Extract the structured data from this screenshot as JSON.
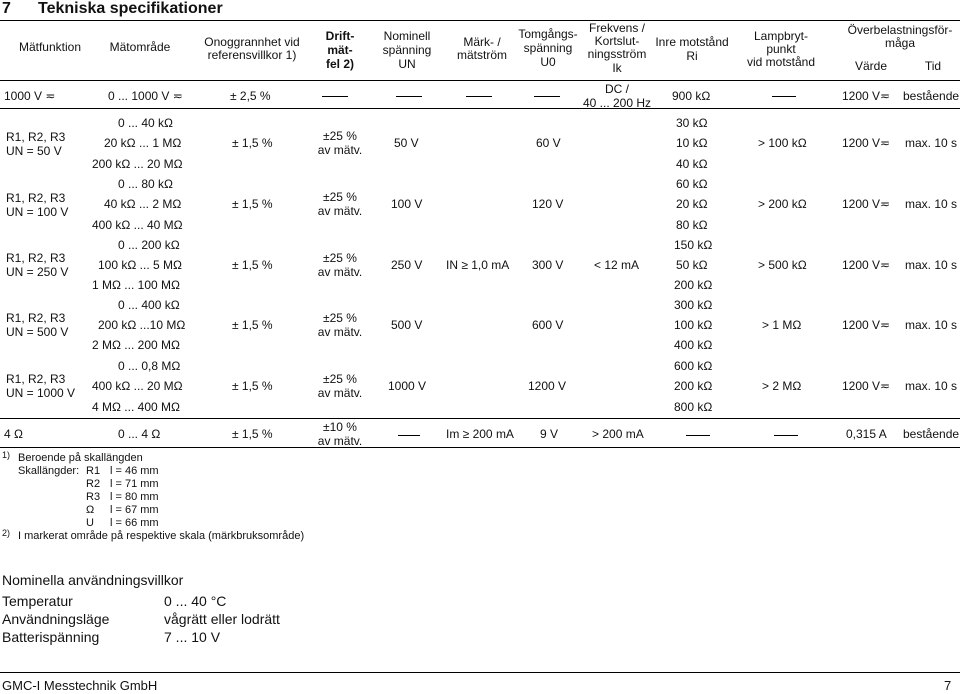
{
  "section": {
    "number": "7",
    "title": "Tekniska specifikationer"
  },
  "headers": {
    "func": "Mätfunktion",
    "range": "Mätområde",
    "accuracy_1": "Onoggrannhet vid",
    "accuracy_2": "referensvillkor 1)",
    "drift_1": "Drift-",
    "drift_2": "mät-",
    "drift_3": "fel 2)",
    "voltage_1": "Nominell",
    "voltage_2": "spänning",
    "voltage_3": "UN",
    "current_1": "Märk- /",
    "current_2": "mätström",
    "idle_1": "Tomgångs-",
    "idle_2": "spänning",
    "idle_3": "U0",
    "freq_1": "Frekvens /",
    "freq_2": "Kortslut-",
    "freq_3": "ningsström",
    "freq_4": "Ik",
    "inner_1": "Inre motstånd",
    "inner_2": "Ri",
    "lamp_1": "Lampbryt-",
    "lamp_2": "punkt",
    "lamp_3": "vid motstånd",
    "overload_1": "Överbelastningsför-",
    "overload_2": "måga",
    "overload_value": "Värde",
    "overload_time": "Tid"
  },
  "row_1000v": {
    "func": "1000 V ≂",
    "range": "0 ... 1000 V ≂",
    "accuracy": "± 2,5 %",
    "freq": "DC /",
    "freq_2": "40 ... 200 Hz",
    "inner": "900 kΩ",
    "value": "1200 V≂",
    "time": "bestående"
  },
  "groups": [
    {
      "func_1": "R1, R2, R3",
      "func_2": "UN = 50 V",
      "ranges": [
        "0 ... 40 kΩ",
        "20 kΩ ... 1 MΩ",
        "200 kΩ ... 20 MΩ"
      ],
      "accuracy": "± 1,5 %",
      "drift_1": "±25 %",
      "drift_2": "av mätv.",
      "voltage": "50 V",
      "idle": "60 V",
      "inner": [
        "30 kΩ",
        "10 kΩ",
        "40 kΩ"
      ],
      "lamp": "> 100 kΩ",
      "value": "1200 V≂",
      "time": "max. 10 s"
    },
    {
      "func_1": "R1, R2, R3",
      "func_2": "UN = 100 V",
      "ranges": [
        "0 ... 80 kΩ",
        "40 kΩ ... 2 MΩ",
        "400 kΩ ... 40 MΩ"
      ],
      "accuracy": "± 1,5 %",
      "drift_1": "±25 %",
      "drift_2": "av mätv.",
      "voltage": "100 V",
      "idle": "120 V",
      "inner": [
        "60 kΩ",
        "20 kΩ",
        "80 kΩ"
      ],
      "lamp": "> 200 kΩ",
      "value": "1200 V≂",
      "time": "max. 10 s"
    },
    {
      "func_1": "R1, R2, R3",
      "func_2": "UN = 250 V",
      "ranges": [
        "0 ... 200 kΩ",
        "100 kΩ ... 5 MΩ",
        "1 MΩ ... 100 MΩ"
      ],
      "accuracy": "± 1,5 %",
      "drift_1": "±25 %",
      "drift_2": "av mätv.",
      "voltage": "250 V",
      "idle": "300 V",
      "inner": [
        "150 kΩ",
        "50 kΩ",
        "200 kΩ"
      ],
      "lamp": "> 500 kΩ",
      "value": "1200 V≂",
      "time": "max. 10 s"
    },
    {
      "func_1": "R1, R2, R3",
      "func_2": "UN = 500 V",
      "ranges": [
        "0 ... 400 kΩ",
        "200 kΩ ...10 MΩ",
        "2 MΩ ... 200 MΩ"
      ],
      "accuracy": "± 1,5 %",
      "drift_1": "±25 %",
      "drift_2": "av mätv.",
      "voltage": "500 V",
      "idle": "600 V",
      "inner": [
        "300 kΩ",
        "100 kΩ",
        "400 kΩ"
      ],
      "lamp": "> 1 MΩ",
      "value": "1200 V≂",
      "time": "max. 10 s"
    },
    {
      "func_1": "R1, R2, R3",
      "func_2": "UN = 1000 V",
      "ranges": [
        "0 ... 0,8 MΩ",
        "400 kΩ ... 20 MΩ",
        "4 MΩ ... 400 MΩ"
      ],
      "accuracy": "± 1,5 %",
      "drift_1": "±25 %",
      "drift_2": "av mätv.",
      "voltage": "1000 V",
      "idle": "1200 V",
      "inner": [
        "600 kΩ",
        "200 kΩ",
        "800 kΩ"
      ],
      "lamp": "> 2 MΩ",
      "value": "1200 V≂",
      "time": "max. 10 s"
    }
  ],
  "shared_current": "IN ≥ 1,0 mA",
  "shared_shortcircuit": "< 12 mA",
  "row_4ohm": {
    "func": "4 Ω",
    "range": "0 ... 4 Ω",
    "accuracy": "± 1,5 %",
    "drift_1": "±10 %",
    "drift_2": "av mätv.",
    "current": "Im ≥ 200 mA",
    "idle": "9 V",
    "freq": "> 200 mA",
    "value": "0,315 A",
    "time": "bestående"
  },
  "footnotes": {
    "n1_mark": "1)",
    "n1_text": "Beroende på skallängden",
    "scale_label": "Skallängder:",
    "scales": [
      {
        "name": "R1",
        "val": "l = 46 mm"
      },
      {
        "name": "R2",
        "val": "l = 71 mm"
      },
      {
        "name": "R3",
        "val": "l = 80 mm"
      },
      {
        "name": "Ω",
        "val": "l = 67 mm"
      },
      {
        "name": "U",
        "val": "l = 66 mm"
      }
    ],
    "n2_mark": "2)",
    "n2_text": "I markerat område på respektive skala (märkbruksområde)"
  },
  "conditions": {
    "title": "Nominella användningsvillkor",
    "rows": [
      {
        "label": "Temperatur",
        "value": "0 ... 40 °C"
      },
      {
        "label": "Användningsläge",
        "value": "vågrätt eller lodrätt"
      },
      {
        "label": "Batterispänning",
        "value": "7 ... 10 V"
      }
    ]
  },
  "footer": {
    "company": "GMC-I Messtechnik GmbH",
    "page": "7"
  }
}
